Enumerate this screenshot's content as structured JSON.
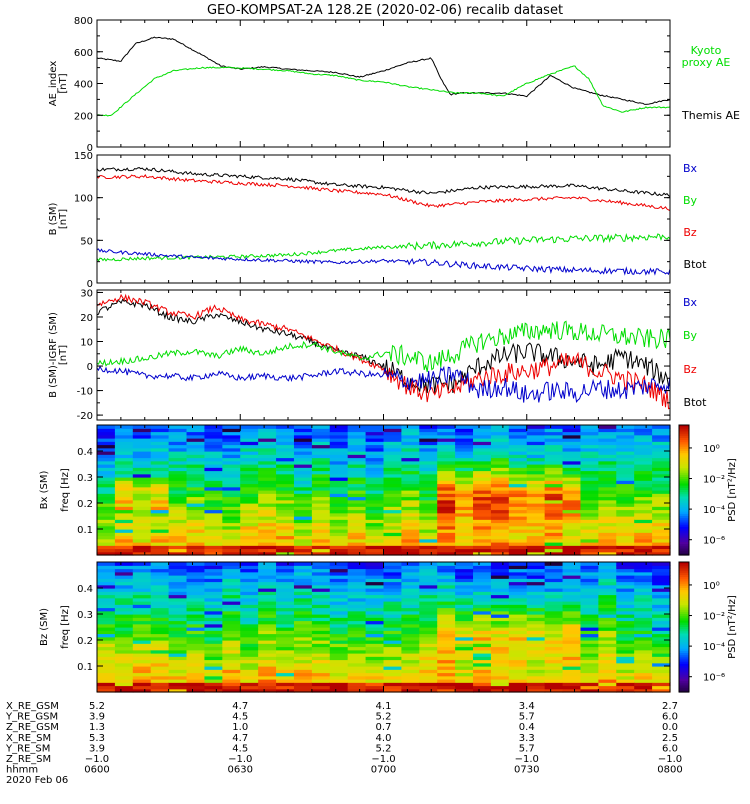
{
  "title": "GEO-KOMPSAT-2A 128.2E (2020-02-06) recalib dataset",
  "colors": {
    "black": "#000000",
    "green": "#00dd00",
    "red": "#ee0000",
    "blue": "#0000cc",
    "axis": "#000000"
  },
  "time_ticks": [
    "0600",
    "0630",
    "0700",
    "0730",
    "0800"
  ],
  "time_range_min": [
    0,
    120
  ],
  "chart_data": [
    {
      "type": "line",
      "panel": "ae",
      "ylabel": "AE_index",
      "yunit": "[nT]",
      "ylim": [
        0,
        800
      ],
      "yticks": [
        "0",
        "200",
        "400",
        "600",
        "800"
      ],
      "ytick_values": [
        0,
        200,
        400,
        600,
        800
      ],
      "legend": [
        "Kyoto proxy AE",
        "Themis AE"
      ],
      "series": [
        {
          "name": "Themis AE",
          "color": "black",
          "x": [
            0,
            5,
            8,
            12,
            16,
            22,
            26,
            30,
            35,
            40,
            45,
            50,
            55,
            60,
            65,
            70,
            72,
            74,
            76,
            80,
            85,
            90,
            95,
            100,
            105,
            110,
            115,
            120
          ],
          "y": [
            560,
            540,
            650,
            690,
            680,
            580,
            510,
            490,
            505,
            490,
            480,
            470,
            440,
            480,
            530,
            560,
            430,
            330,
            340,
            340,
            340,
            320,
            450,
            370,
            330,
            300,
            270,
            300
          ]
        },
        {
          "name": "Kyoto proxy AE",
          "color": "green",
          "x": [
            0,
            3,
            8,
            12,
            16,
            22,
            28,
            35,
            40,
            45,
            50,
            55,
            60,
            65,
            70,
            75,
            80,
            85,
            90,
            95,
            100,
            103,
            106,
            110,
            115,
            120
          ],
          "y": [
            200,
            200,
            330,
            430,
            480,
            500,
            500,
            490,
            480,
            460,
            450,
            420,
            410,
            380,
            360,
            340,
            340,
            320,
            400,
            460,
            510,
            430,
            260,
            220,
            250,
            250
          ]
        }
      ]
    },
    {
      "type": "line",
      "panel": "b_sm",
      "ylabel": "B (SM)",
      "yunit": "[nT]",
      "ylim": [
        0,
        150
      ],
      "yticks": [
        "0",
        "50",
        "100",
        "150"
      ],
      "ytick_values": [
        0,
        50,
        100,
        150
      ],
      "legend": [
        "Bx",
        "By",
        "Bz",
        "Btot"
      ],
      "series": [
        {
          "name": "Btot",
          "color": "black",
          "x": [
            0,
            10,
            20,
            30,
            40,
            50,
            60,
            70,
            80,
            90,
            100,
            110,
            120
          ],
          "y": [
            133,
            134,
            128,
            125,
            122,
            115,
            112,
            105,
            112,
            113,
            114,
            108,
            103
          ]
        },
        {
          "name": "Bz",
          "color": "red",
          "x": [
            0,
            10,
            20,
            30,
            40,
            50,
            60,
            70,
            80,
            90,
            100,
            110,
            120
          ],
          "y": [
            124,
            125,
            120,
            117,
            114,
            108,
            104,
            90,
            95,
            98,
            100,
            94,
            87
          ]
        },
        {
          "name": "By",
          "color": "green",
          "x": [
            0,
            10,
            20,
            30,
            40,
            50,
            60,
            70,
            80,
            90,
            100,
            110,
            120
          ],
          "y": [
            27,
            29,
            30,
            31,
            33,
            38,
            42,
            44,
            47,
            50,
            52,
            53,
            55
          ]
        },
        {
          "name": "Bx",
          "color": "blue",
          "x": [
            0,
            10,
            20,
            30,
            40,
            50,
            60,
            70,
            80,
            90,
            100,
            110,
            120
          ],
          "y": [
            38,
            34,
            30,
            28,
            26,
            24,
            26,
            24,
            20,
            17,
            15,
            14,
            13
          ]
        }
      ]
    },
    {
      "type": "line",
      "panel": "b_minus_igrf",
      "ylabel": "B (SM)-IGRF (SM)",
      "yunit": "[nT]",
      "ylim": [
        -22,
        31
      ],
      "yticks": [
        "-20",
        "-10",
        "0",
        "10",
        "20",
        "30"
      ],
      "ytick_values": [
        -20,
        -10,
        0,
        10,
        20,
        30
      ],
      "legend": [
        "Bx",
        "By",
        "Bz",
        "Btot"
      ],
      "series": [
        {
          "name": "Btot",
          "color": "black",
          "x": [
            0,
            5,
            10,
            15,
            20,
            25,
            30,
            35,
            40,
            45,
            50,
            55,
            60,
            65,
            70,
            75,
            80,
            85,
            90,
            95,
            100,
            105,
            110,
            115,
            120
          ],
          "y": [
            22,
            26,
            25,
            20,
            18,
            21,
            18,
            15,
            13,
            10,
            6,
            4,
            0,
            -6,
            -8,
            -7,
            0,
            4,
            6,
            4,
            2,
            0,
            4,
            0,
            -6
          ]
        },
        {
          "name": "Bz",
          "color": "red",
          "x": [
            0,
            5,
            10,
            15,
            20,
            25,
            30,
            35,
            40,
            45,
            50,
            55,
            60,
            65,
            70,
            75,
            80,
            85,
            90,
            95,
            100,
            105,
            110,
            115,
            120
          ],
          "y": [
            25,
            28,
            26,
            22,
            20,
            24,
            19,
            17,
            15,
            11,
            7,
            3,
            -1,
            -8,
            -12,
            -9,
            -5,
            -3,
            -2,
            0,
            2,
            -2,
            -5,
            -8,
            -14
          ]
        },
        {
          "name": "By",
          "color": "green",
          "x": [
            0,
            5,
            10,
            15,
            20,
            25,
            30,
            35,
            40,
            45,
            50,
            55,
            60,
            65,
            70,
            75,
            80,
            85,
            90,
            95,
            100,
            105,
            110,
            115,
            120
          ],
          "y": [
            1,
            2,
            3,
            5,
            6,
            4,
            7,
            5,
            8,
            9,
            6,
            3,
            5,
            4,
            1,
            5,
            10,
            12,
            14,
            15,
            14,
            13,
            12,
            11,
            11
          ]
        },
        {
          "name": "Bx",
          "color": "blue",
          "x": [
            0,
            5,
            10,
            15,
            20,
            25,
            30,
            35,
            40,
            45,
            50,
            55,
            60,
            65,
            70,
            75,
            80,
            85,
            90,
            95,
            100,
            105,
            110,
            115,
            120
          ],
          "y": [
            -1,
            -2,
            -4,
            -4,
            -5,
            -3,
            -5,
            -4,
            -5,
            -4,
            -2,
            -3,
            -4,
            -6,
            -6,
            -3,
            -10,
            -8,
            -12,
            -10,
            -11,
            -9,
            -10,
            -8,
            -7
          ]
        }
      ]
    },
    {
      "type": "heatmap",
      "panel": "bx_psd",
      "ylabel": "Bx (SM)",
      "yunit": "freq [Hz]",
      "ylim": [
        0,
        0.5
      ],
      "yticks": [
        "0.1",
        "0.2",
        "0.3",
        "0.4"
      ],
      "ytick_values": [
        0.1,
        0.2,
        0.3,
        0.4
      ],
      "colorbar_label": "PSD [nT²/Hz]",
      "colorbar_ticks": [
        "10⁰",
        "10⁻²",
        "10⁻⁴",
        "10⁻⁶"
      ],
      "colorbar_tick_values": [
        0,
        -2,
        -4,
        -6
      ],
      "colorbar_range": [
        -7,
        1.5
      ]
    },
    {
      "type": "heatmap",
      "panel": "bz_psd",
      "ylabel": "Bz (SM)",
      "yunit": "freq [Hz]",
      "ylim": [
        0,
        0.5
      ],
      "yticks": [
        "0.1",
        "0.2",
        "0.3",
        "0.4"
      ],
      "ytick_values": [
        0.1,
        0.2,
        0.3,
        0.4
      ],
      "colorbar_label": "PSD [nT²/Hz]",
      "colorbar_ticks": [
        "10⁰",
        "10⁻²",
        "10⁻⁴",
        "10⁻⁶"
      ],
      "colorbar_tick_values": [
        0,
        -2,
        -4,
        -6
      ],
      "colorbar_range": [
        -7,
        1.5
      ]
    }
  ],
  "ephemeris": {
    "labels": [
      "X_RE_GSM",
      "Y_RE_GSM",
      "Z_RE_GSM",
      "X_RE_SM",
      "Y_RE_SM",
      "Z_RE_SM",
      "hhmm"
    ],
    "columns": [
      [
        "5.2",
        "3.9",
        "1.3",
        "5.3",
        "3.9",
        "−1.0",
        "0600"
      ],
      [
        "4.7",
        "4.5",
        "1.0",
        "4.7",
        "4.5",
        "−1.0",
        "0630"
      ],
      [
        "4.1",
        "5.2",
        "0.7",
        "4.0",
        "5.2",
        "−1.0",
        "0700"
      ],
      [
        "3.4",
        "5.7",
        "0.4",
        "3.3",
        "5.7",
        "−1.0",
        "0730"
      ],
      [
        "2.7",
        "6.0",
        "0.0",
        "2.5",
        "6.0",
        "−1.0",
        "0800"
      ]
    ],
    "date": "2020 Feb 06"
  }
}
